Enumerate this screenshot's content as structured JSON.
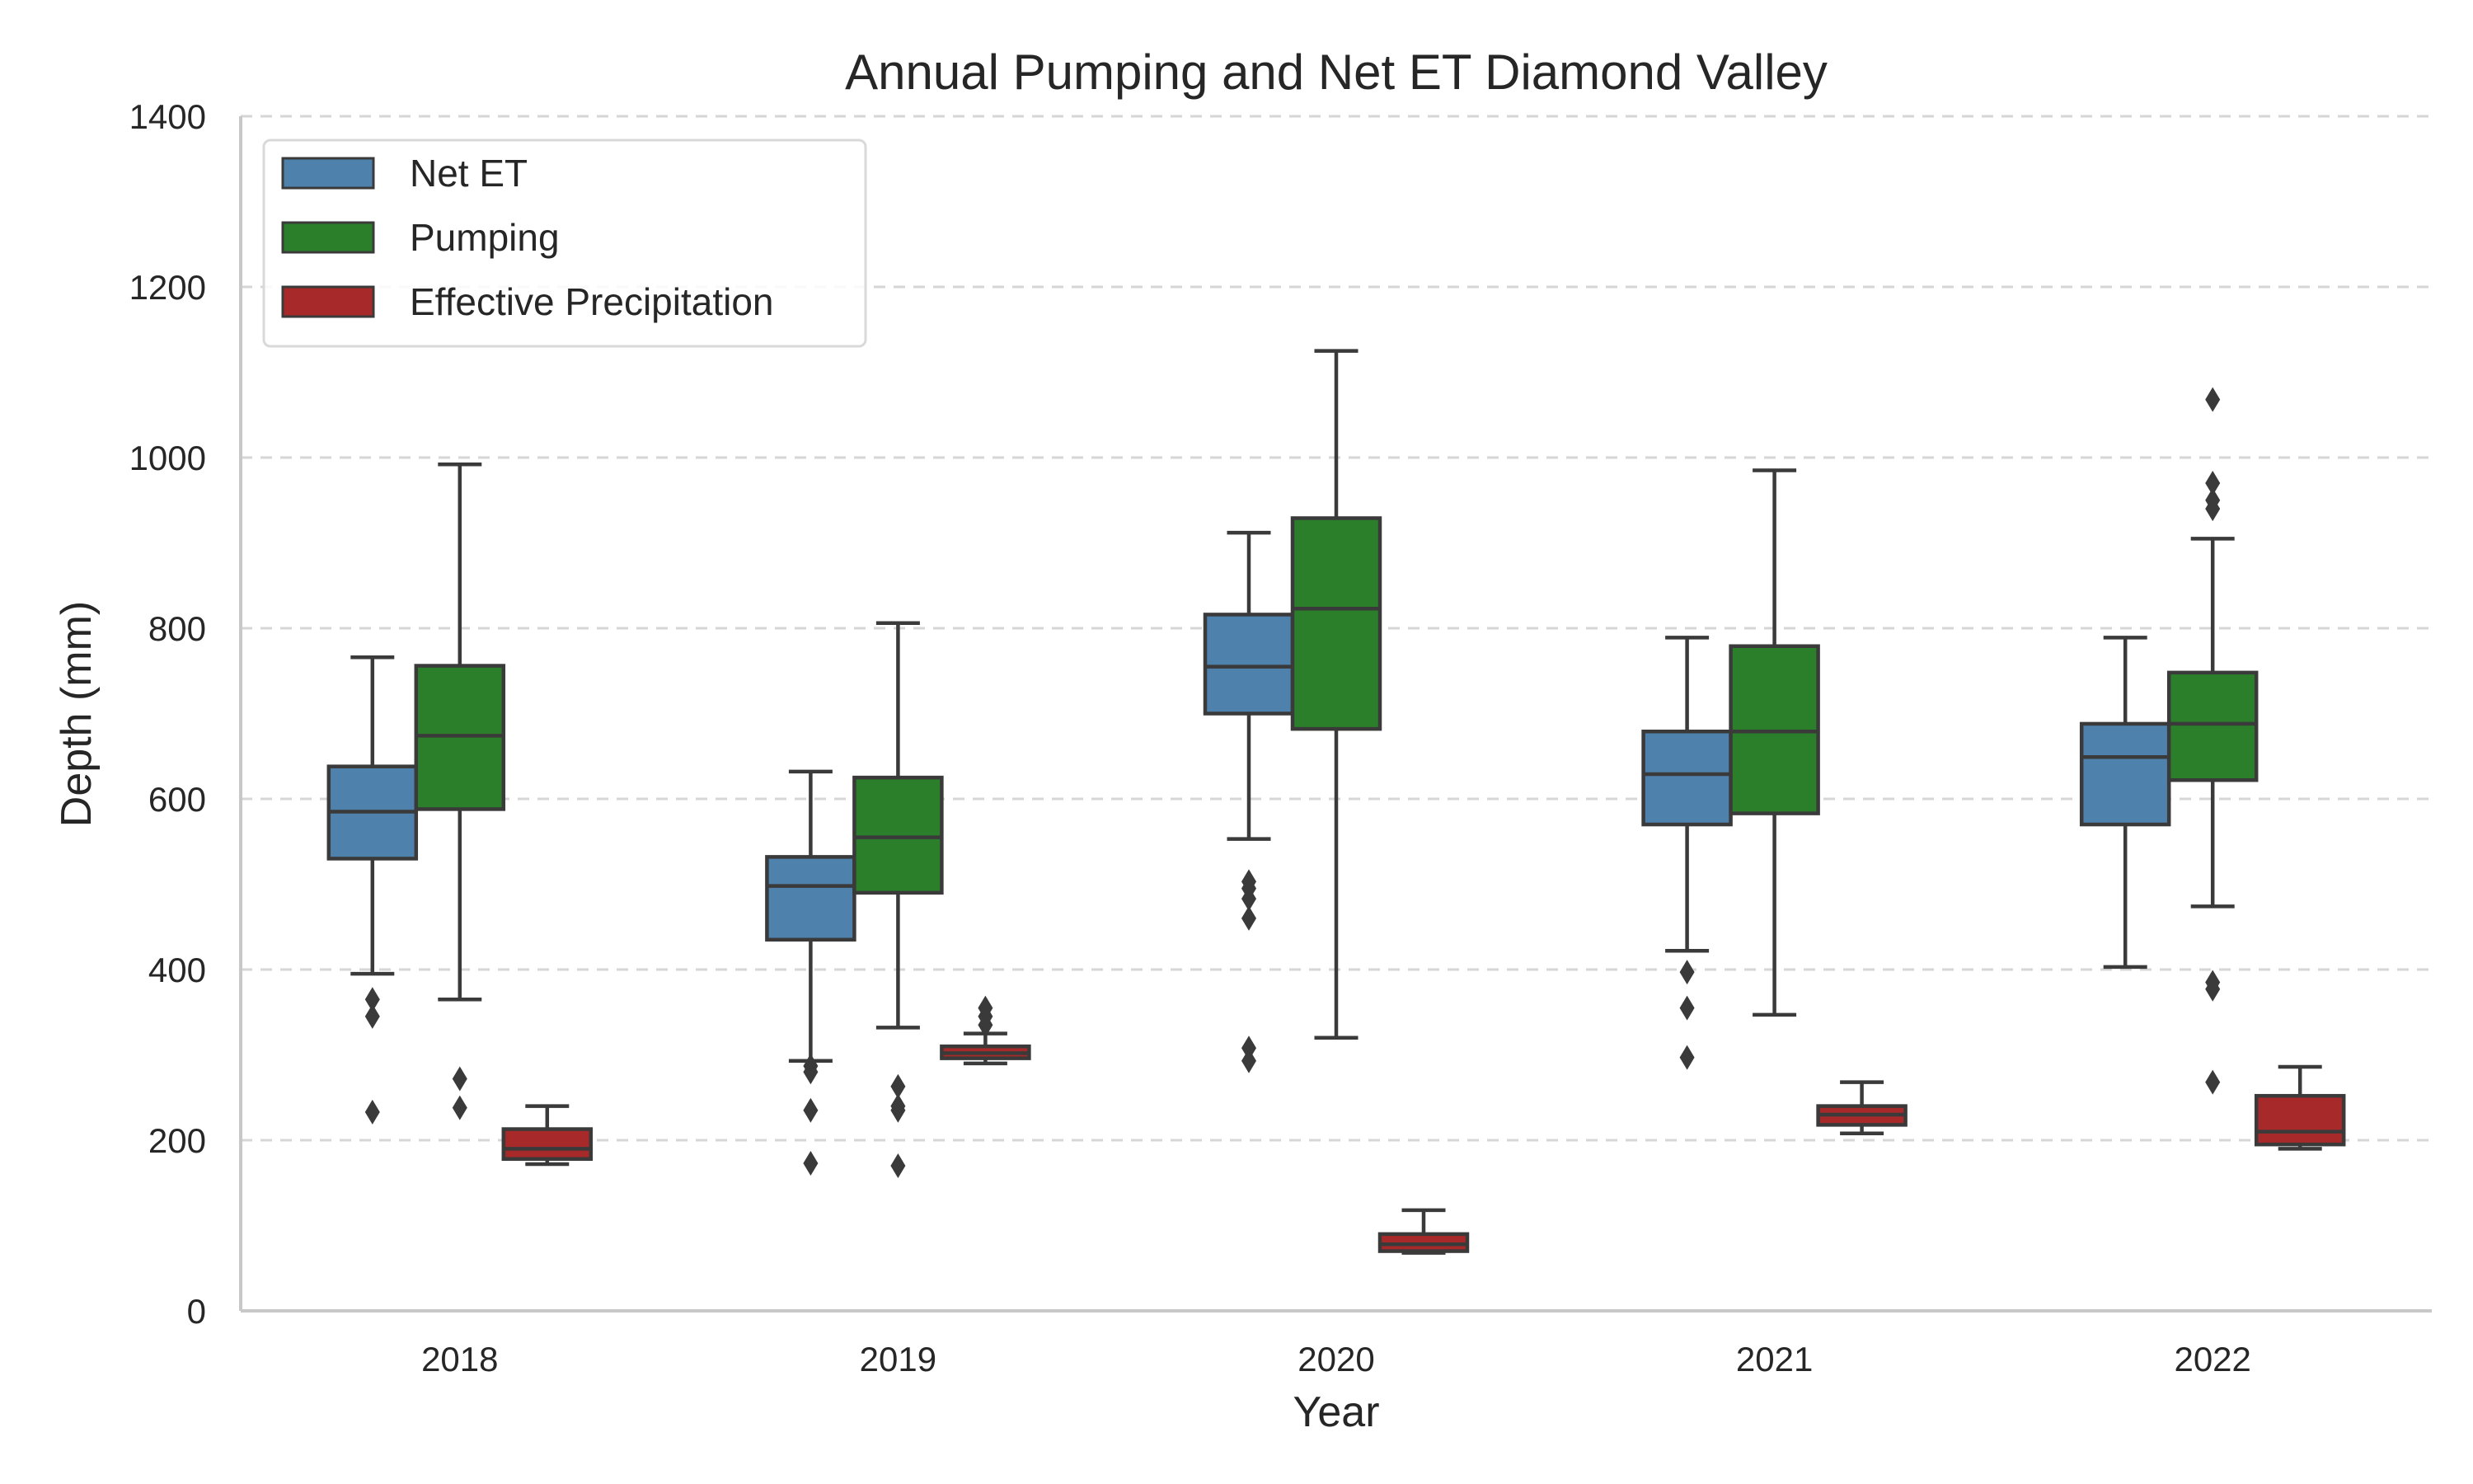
{
  "chart_data": {
    "type": "boxplot",
    "title": "Annual Pumping and Net ET Diamond Valley",
    "xlabel": "Year",
    "ylabel": "Depth (mm)",
    "ylim": [
      0,
      1400
    ],
    "yticks": [
      0,
      200,
      400,
      600,
      800,
      1000,
      1200,
      1400
    ],
    "grid": "y-dashed",
    "legend_position": "top-left",
    "categories": [
      "2018",
      "2019",
      "2020",
      "2021",
      "2022"
    ],
    "series": [
      {
        "name": "Net ET",
        "color": "#4f81ad",
        "boxes": [
          {
            "whislo": 395,
            "q1": 530,
            "med": 585,
            "q3": 638,
            "whishi": 766,
            "fliers": [
              365,
              345,
              233
            ]
          },
          {
            "whislo": 293,
            "q1": 435,
            "med": 498,
            "q3": 532,
            "whishi": 632,
            "fliers": [
              287,
              280,
              235,
              173
            ]
          },
          {
            "whislo": 553,
            "q1": 700,
            "med": 755,
            "q3": 816,
            "whishi": 912,
            "fliers": [
              503,
              495,
              483,
              460,
              308,
              293
            ]
          },
          {
            "whislo": 422,
            "q1": 570,
            "med": 629,
            "q3": 679,
            "whishi": 789,
            "fliers": [
              397,
              355,
              297
            ]
          },
          {
            "whislo": 403,
            "q1": 570,
            "med": 649,
            "q3": 688,
            "whishi": 789,
            "fliers": []
          }
        ]
      },
      {
        "name": "Pumping",
        "color": "#2b7f2b",
        "boxes": [
          {
            "whislo": 365,
            "q1": 588,
            "med": 674,
            "q3": 756,
            "whishi": 992,
            "fliers": [
              272,
              238
            ]
          },
          {
            "whislo": 332,
            "q1": 490,
            "med": 555,
            "q3": 625,
            "whishi": 806,
            "fliers": [
              263,
              240,
              235,
              170
            ]
          },
          {
            "whislo": 320,
            "q1": 682,
            "med": 823,
            "q3": 929,
            "whishi": 1125,
            "fliers": []
          },
          {
            "whislo": 347,
            "q1": 583,
            "med": 679,
            "q3": 779,
            "whishi": 985,
            "fliers": []
          },
          {
            "whislo": 474,
            "q1": 622,
            "med": 688,
            "q3": 748,
            "whishi": 905,
            "fliers": [
              1068,
              970,
              950,
              940,
              385,
              377,
              268
            ]
          }
        ]
      },
      {
        "name": "Effective Precipitation",
        "color": "#a8292a",
        "boxes": [
          {
            "whislo": 172,
            "q1": 178,
            "med": 190,
            "q3": 213,
            "whishi": 240,
            "fliers": []
          },
          {
            "whislo": 290,
            "q1": 296,
            "med": 302,
            "q3": 310,
            "whishi": 325,
            "fliers": [
              355,
              345,
              335
            ]
          },
          {
            "whislo": 68,
            "q1": 70,
            "med": 78,
            "q3": 90,
            "whishi": 118,
            "fliers": []
          },
          {
            "whislo": 208,
            "q1": 218,
            "med": 230,
            "q3": 240,
            "whishi": 268,
            "fliers": []
          },
          {
            "whislo": 190,
            "q1": 195,
            "med": 210,
            "q3": 252,
            "whishi": 286,
            "fliers": []
          }
        ]
      }
    ]
  }
}
